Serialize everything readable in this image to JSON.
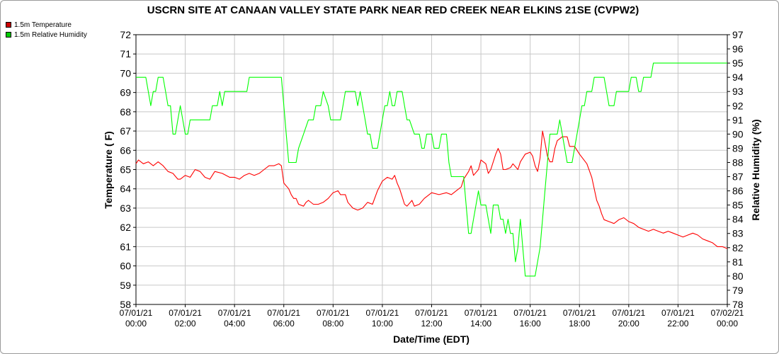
{
  "chart_data": {
    "type": "line",
    "title": "USCRN SITE AT CANAAN VALLEY STATE PARK NEAR RED CREEK NEAR ELKINS 21SE (CVPW2)",
    "xlabel": "Date/Time (EDT)",
    "ylabel_left": "Temperature ( F)",
    "ylabel_right": "Relative Humidity (%)",
    "y_left_range": [
      58,
      72
    ],
    "y_right_range": [
      78,
      97
    ],
    "y_left_ticks": [
      "58",
      "59",
      "60",
      "61",
      "62",
      "63",
      "64",
      "65",
      "66",
      "67",
      "68",
      "69",
      "70",
      "71",
      "72"
    ],
    "y_right_ticks": [
      "78",
      "79",
      "80",
      "81",
      "82",
      "83",
      "84",
      "85",
      "86",
      "87",
      "88",
      "89",
      "90",
      "91",
      "92",
      "93",
      "94",
      "95",
      "96",
      "97"
    ],
    "x_range_hours": [
      0,
      24
    ],
    "x_ticks": [
      {
        "hour": 0,
        "date": "07/01/21",
        "time": "00:00"
      },
      {
        "hour": 2,
        "date": "07/01/21",
        "time": "02:00"
      },
      {
        "hour": 4,
        "date": "07/01/21",
        "time": "04:00"
      },
      {
        "hour": 6,
        "date": "07/01/21",
        "time": "06:00"
      },
      {
        "hour": 8,
        "date": "07/01/21",
        "time": "08:00"
      },
      {
        "hour": 10,
        "date": "07/01/21",
        "time": "10:00"
      },
      {
        "hour": 12,
        "date": "07/01/21",
        "time": "12:00"
      },
      {
        "hour": 14,
        "date": "07/01/21",
        "time": "14:00"
      },
      {
        "hour": 16,
        "date": "07/01/21",
        "time": "16:00"
      },
      {
        "hour": 18,
        "date": "07/01/21",
        "time": "18:00"
      },
      {
        "hour": 20,
        "date": "07/01/21",
        "time": "20:00"
      },
      {
        "hour": 22,
        "date": "07/01/21",
        "time": "22:00"
      },
      {
        "hour": 24,
        "date": "07/02/21",
        "time": "00:00"
      }
    ],
    "grid": true,
    "legend_position": "top-left",
    "series": [
      {
        "name": "1.5m Temperature",
        "axis": "left",
        "color": "#ff0000",
        "points": [
          [
            0,
            65.3
          ],
          [
            0.1,
            65.5
          ],
          [
            0.3,
            65.3
          ],
          [
            0.5,
            65.4
          ],
          [
            0.7,
            65.2
          ],
          [
            0.9,
            65.4
          ],
          [
            1.1,
            65.2
          ],
          [
            1.3,
            64.9
          ],
          [
            1.5,
            64.8
          ],
          [
            1.7,
            64.5
          ],
          [
            1.8,
            64.5
          ],
          [
            2.0,
            64.7
          ],
          [
            2.2,
            64.6
          ],
          [
            2.4,
            65.0
          ],
          [
            2.6,
            64.9
          ],
          [
            2.8,
            64.6
          ],
          [
            3.0,
            64.5
          ],
          [
            3.2,
            64.9
          ],
          [
            3.5,
            64.8
          ],
          [
            3.8,
            64.6
          ],
          [
            4.0,
            64.6
          ],
          [
            4.2,
            64.5
          ],
          [
            4.4,
            64.7
          ],
          [
            4.6,
            64.8
          ],
          [
            4.8,
            64.7
          ],
          [
            5.0,
            64.8
          ],
          [
            5.2,
            65.0
          ],
          [
            5.4,
            65.2
          ],
          [
            5.6,
            65.2
          ],
          [
            5.8,
            65.3
          ],
          [
            5.9,
            65.2
          ],
          [
            6.0,
            64.3
          ],
          [
            6.2,
            64.0
          ],
          [
            6.3,
            63.7
          ],
          [
            6.4,
            63.5
          ],
          [
            6.5,
            63.5
          ],
          [
            6.6,
            63.2
          ],
          [
            6.8,
            63.1
          ],
          [
            6.9,
            63.3
          ],
          [
            7.0,
            63.4
          ],
          [
            7.2,
            63.2
          ],
          [
            7.4,
            63.2
          ],
          [
            7.6,
            63.3
          ],
          [
            7.8,
            63.5
          ],
          [
            8.0,
            63.8
          ],
          [
            8.2,
            63.9
          ],
          [
            8.3,
            63.7
          ],
          [
            8.5,
            63.7
          ],
          [
            8.6,
            63.3
          ],
          [
            8.8,
            63.0
          ],
          [
            9.0,
            62.9
          ],
          [
            9.2,
            63.0
          ],
          [
            9.4,
            63.3
          ],
          [
            9.6,
            63.2
          ],
          [
            9.8,
            63.9
          ],
          [
            10.0,
            64.4
          ],
          [
            10.2,
            64.6
          ],
          [
            10.4,
            64.5
          ],
          [
            10.5,
            64.7
          ],
          [
            10.6,
            64.3
          ],
          [
            10.7,
            64.0
          ],
          [
            10.8,
            63.6
          ],
          [
            10.9,
            63.2
          ],
          [
            11.0,
            63.1
          ],
          [
            11.2,
            63.4
          ],
          [
            11.3,
            63.1
          ],
          [
            11.5,
            63.2
          ],
          [
            11.7,
            63.5
          ],
          [
            12.0,
            63.8
          ],
          [
            12.3,
            63.7
          ],
          [
            12.6,
            63.8
          ],
          [
            12.8,
            63.7
          ],
          [
            13.0,
            63.9
          ],
          [
            13.2,
            64.1
          ],
          [
            13.3,
            64.5
          ],
          [
            13.5,
            64.9
          ],
          [
            13.6,
            65.2
          ],
          [
            13.7,
            64.7
          ],
          [
            13.9,
            65.0
          ],
          [
            14.0,
            65.5
          ],
          [
            14.2,
            65.3
          ],
          [
            14.3,
            64.8
          ],
          [
            14.4,
            65.0
          ],
          [
            14.6,
            65.8
          ],
          [
            14.7,
            66.1
          ],
          [
            14.8,
            65.8
          ],
          [
            14.9,
            65.0
          ],
          [
            15.0,
            65.0
          ],
          [
            15.2,
            65.1
          ],
          [
            15.3,
            65.3
          ],
          [
            15.5,
            65.0
          ],
          [
            15.6,
            65.4
          ],
          [
            15.8,
            65.8
          ],
          [
            16.0,
            65.9
          ],
          [
            16.1,
            65.7
          ],
          [
            16.2,
            65.2
          ],
          [
            16.3,
            64.9
          ],
          [
            16.4,
            65.6
          ],
          [
            16.5,
            67.0
          ],
          [
            16.6,
            66.4
          ],
          [
            16.7,
            65.7
          ],
          [
            16.8,
            65.4
          ],
          [
            16.9,
            65.4
          ],
          [
            17.0,
            66.1
          ],
          [
            17.1,
            66.5
          ],
          [
            17.3,
            66.7
          ],
          [
            17.5,
            66.7
          ],
          [
            17.6,
            66.2
          ],
          [
            17.8,
            66.2
          ],
          [
            18.0,
            65.8
          ],
          [
            18.3,
            65.3
          ],
          [
            18.5,
            64.6
          ],
          [
            18.7,
            63.4
          ],
          [
            18.8,
            63.1
          ],
          [
            18.9,
            62.7
          ],
          [
            19.0,
            62.4
          ],
          [
            19.2,
            62.3
          ],
          [
            19.4,
            62.2
          ],
          [
            19.6,
            62.4
          ],
          [
            19.8,
            62.5
          ],
          [
            20.0,
            62.3
          ],
          [
            20.2,
            62.2
          ],
          [
            20.4,
            62.0
          ],
          [
            20.6,
            61.9
          ],
          [
            20.8,
            61.8
          ],
          [
            21.0,
            61.9
          ],
          [
            21.2,
            61.8
          ],
          [
            21.4,
            61.7
          ],
          [
            21.6,
            61.8
          ],
          [
            21.8,
            61.7
          ],
          [
            22.0,
            61.6
          ],
          [
            22.2,
            61.5
          ],
          [
            22.4,
            61.6
          ],
          [
            22.6,
            61.7
          ],
          [
            22.8,
            61.6
          ],
          [
            23.0,
            61.4
          ],
          [
            23.2,
            61.3
          ],
          [
            23.4,
            61.2
          ],
          [
            23.6,
            61.0
          ],
          [
            23.8,
            61.0
          ],
          [
            24.0,
            60.9
          ]
        ]
      },
      {
        "name": "1.5m Relative Humidity",
        "axis": "right",
        "color": "#00ff00",
        "points": [
          [
            0,
            94
          ],
          [
            0.4,
            94
          ],
          [
            0.5,
            93
          ],
          [
            0.6,
            92
          ],
          [
            0.7,
            93
          ],
          [
            0.8,
            93
          ],
          [
            0.9,
            94
          ],
          [
            1.1,
            94
          ],
          [
            1.2,
            93
          ],
          [
            1.3,
            92
          ],
          [
            1.4,
            92
          ],
          [
            1.5,
            90
          ],
          [
            1.6,
            90
          ],
          [
            1.7,
            91
          ],
          [
            1.8,
            92
          ],
          [
            1.9,
            91
          ],
          [
            2.0,
            90
          ],
          [
            2.1,
            90
          ],
          [
            2.2,
            91
          ],
          [
            2.4,
            91
          ],
          [
            2.8,
            91
          ],
          [
            3.0,
            91
          ],
          [
            3.1,
            92
          ],
          [
            3.3,
            92
          ],
          [
            3.4,
            93
          ],
          [
            3.5,
            92
          ],
          [
            3.6,
            93
          ],
          [
            3.8,
            93
          ],
          [
            4.2,
            93
          ],
          [
            4.5,
            93
          ],
          [
            4.6,
            94
          ],
          [
            5.0,
            94
          ],
          [
            5.4,
            94
          ],
          [
            5.8,
            94
          ],
          [
            5.9,
            94
          ],
          [
            6.0,
            92
          ],
          [
            6.1,
            90
          ],
          [
            6.2,
            88
          ],
          [
            6.5,
            88
          ],
          [
            6.6,
            89
          ],
          [
            6.8,
            90
          ],
          [
            7.0,
            91
          ],
          [
            7.2,
            91
          ],
          [
            7.3,
            92
          ],
          [
            7.5,
            92
          ],
          [
            7.6,
            93
          ],
          [
            7.8,
            92
          ],
          [
            7.9,
            91
          ],
          [
            8.0,
            91
          ],
          [
            8.3,
            91
          ],
          [
            8.4,
            92
          ],
          [
            8.5,
            93
          ],
          [
            8.6,
            93
          ],
          [
            8.9,
            93
          ],
          [
            9.0,
            92
          ],
          [
            9.1,
            93
          ],
          [
            9.2,
            92
          ],
          [
            9.3,
            91
          ],
          [
            9.4,
            90
          ],
          [
            9.5,
            90
          ],
          [
            9.6,
            89
          ],
          [
            9.8,
            89
          ],
          [
            9.9,
            90
          ],
          [
            10.0,
            91
          ],
          [
            10.1,
            92
          ],
          [
            10.2,
            92
          ],
          [
            10.3,
            93
          ],
          [
            10.4,
            92
          ],
          [
            10.5,
            92
          ],
          [
            10.6,
            93
          ],
          [
            10.8,
            93
          ],
          [
            10.9,
            92
          ],
          [
            11.0,
            91
          ],
          [
            11.1,
            91
          ],
          [
            11.3,
            90
          ],
          [
            11.5,
            90
          ],
          [
            11.6,
            89
          ],
          [
            11.7,
            89
          ],
          [
            11.8,
            90
          ],
          [
            12.0,
            90
          ],
          [
            12.1,
            89
          ],
          [
            12.3,
            89
          ],
          [
            12.4,
            90
          ],
          [
            12.6,
            90
          ],
          [
            12.7,
            88
          ],
          [
            12.8,
            87
          ],
          [
            13.3,
            87
          ],
          [
            13.4,
            85
          ],
          [
            13.5,
            83
          ],
          [
            13.6,
            83
          ],
          [
            13.7,
            84
          ],
          [
            13.8,
            85
          ],
          [
            13.9,
            86
          ],
          [
            14.0,
            85
          ],
          [
            14.2,
            85
          ],
          [
            14.4,
            83
          ],
          [
            14.5,
            85
          ],
          [
            14.7,
            85
          ],
          [
            14.8,
            84
          ],
          [
            14.9,
            84
          ],
          [
            15.0,
            83
          ],
          [
            15.1,
            84
          ],
          [
            15.2,
            83
          ],
          [
            15.3,
            83
          ],
          [
            15.4,
            81
          ],
          [
            15.5,
            82
          ],
          [
            15.6,
            84
          ],
          [
            15.7,
            82
          ],
          [
            15.8,
            80
          ],
          [
            16.0,
            80
          ],
          [
            16.2,
            80
          ],
          [
            16.3,
            81
          ],
          [
            16.4,
            82
          ],
          [
            16.5,
            84
          ],
          [
            16.6,
            86
          ],
          [
            16.7,
            88
          ],
          [
            16.8,
            90
          ],
          [
            17.1,
            90
          ],
          [
            17.2,
            91
          ],
          [
            17.3,
            90
          ],
          [
            17.4,
            89
          ],
          [
            17.5,
            88
          ],
          [
            17.7,
            88
          ],
          [
            17.8,
            89
          ],
          [
            17.9,
            90
          ],
          [
            18.0,
            91
          ],
          [
            18.1,
            92
          ],
          [
            18.2,
            92
          ],
          [
            18.3,
            93
          ],
          [
            18.5,
            93
          ],
          [
            18.6,
            94
          ],
          [
            19.0,
            94
          ],
          [
            19.1,
            93
          ],
          [
            19.2,
            92
          ],
          [
            19.4,
            92
          ],
          [
            19.5,
            93
          ],
          [
            19.8,
            93
          ],
          [
            20.0,
            93
          ],
          [
            20.1,
            94
          ],
          [
            20.3,
            94
          ],
          [
            20.4,
            93
          ],
          [
            20.5,
            93
          ],
          [
            20.6,
            94
          ],
          [
            20.9,
            94
          ],
          [
            21.0,
            95
          ],
          [
            24.0,
            95
          ]
        ]
      }
    ]
  },
  "legend": {
    "temp_label": "1.5m Temperature",
    "rh_label": "1.5m Relative Humidity",
    "temp_color": "#cc0000",
    "rh_color": "#00cc00"
  }
}
